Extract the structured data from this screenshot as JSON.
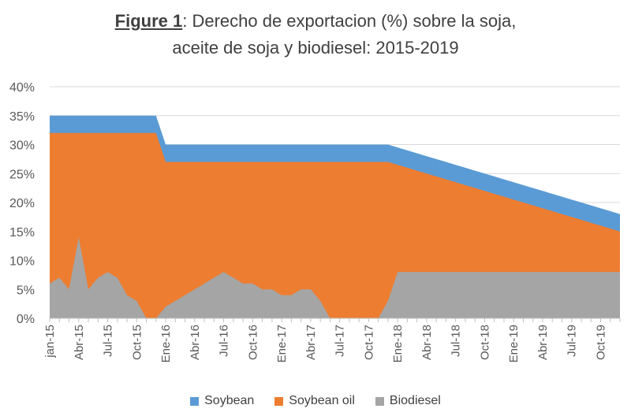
{
  "chart_data": {
    "type": "area",
    "stacked": false,
    "title_prefix": "Figure 1",
    "title_line1": ": Derecho de exportacion (%) sobre la soja,",
    "title_line2": "aceite de soja y biodiesel: 2015-2019",
    "ylim": [
      0,
      40
    ],
    "y_ticks": [
      "0%",
      "5%",
      "10%",
      "15%",
      "20%",
      "25%",
      "30%",
      "35%",
      "40%"
    ],
    "x_tick_labels": [
      "jan-15",
      "Abr-15",
      "Jul-15",
      "Oct-15",
      "Ene-16",
      "Abr-16",
      "Jul-16",
      "Oct-16",
      "Ene-17",
      "Abr-17",
      "Jul-17",
      "Oct-17",
      "Ene-18",
      "Abr-18",
      "Jul-18",
      "Oct-18",
      "Ene-19",
      "Abr-19",
      "Jul-19",
      "Oct-19"
    ],
    "legend_position": "bottom",
    "series": [
      {
        "name": "Soybean",
        "color": "#5B9BD5",
        "values": [
          35,
          35,
          35,
          35,
          35,
          35,
          35,
          35,
          35,
          35,
          35,
          35,
          30,
          30,
          30,
          30,
          30,
          30,
          30,
          30,
          30,
          30,
          30,
          30,
          30,
          30,
          30,
          30,
          30,
          30,
          30,
          30,
          30,
          30,
          30,
          30,
          29.5,
          29,
          28.5,
          28,
          27.5,
          27,
          26.5,
          26,
          25.5,
          25,
          24.5,
          24,
          23.5,
          23,
          22.5,
          22,
          21.5,
          21,
          20.5,
          20,
          19.5,
          19,
          18.5,
          18
        ]
      },
      {
        "name": "Soybean oil",
        "color": "#ED7D31",
        "values": [
          32,
          32,
          32,
          32,
          32,
          32,
          32,
          32,
          32,
          32,
          32,
          32,
          27,
          27,
          27,
          27,
          27,
          27,
          27,
          27,
          27,
          27,
          27,
          27,
          27,
          27,
          27,
          27,
          27,
          27,
          27,
          27,
          27,
          27,
          27,
          27,
          26.5,
          26,
          25.5,
          25,
          24.5,
          24,
          23.5,
          23,
          22.5,
          22,
          21.5,
          21,
          20.5,
          20,
          19.5,
          19,
          18.5,
          18,
          17.5,
          17,
          16.5,
          16,
          15.5,
          15
        ]
      },
      {
        "name": "Biodiesel",
        "color": "#A5A5A5",
        "values": [
          6,
          7,
          5,
          14,
          5,
          7,
          8,
          7,
          4,
          3,
          0,
          0,
          2,
          3,
          4,
          5,
          6,
          7,
          8,
          7,
          6,
          6,
          5,
          5,
          4,
          4,
          5,
          5,
          3,
          0,
          0,
          0,
          0,
          0,
          0,
          3,
          8,
          8,
          8,
          8,
          8,
          8,
          8,
          8,
          8,
          8,
          8,
          8,
          8,
          8,
          8,
          8,
          8,
          8,
          8,
          8,
          8,
          8,
          8,
          8
        ]
      }
    ]
  }
}
